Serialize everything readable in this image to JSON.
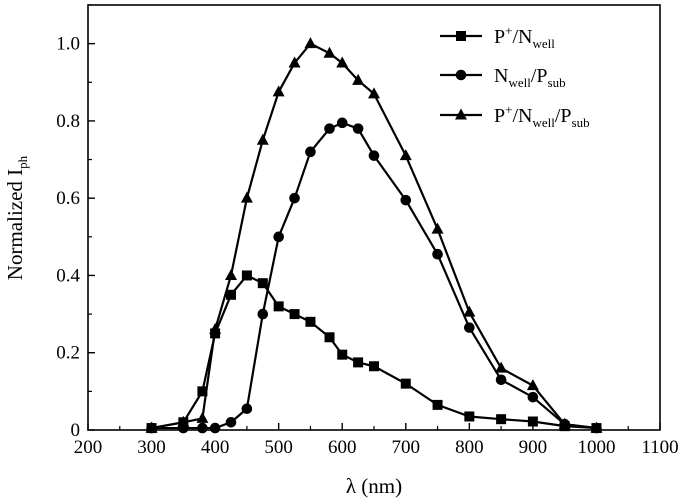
{
  "chart_data": {
    "type": "line",
    "xlabel": "λ (nm)",
    "ylabel": "Normalized I",
    "ylabel_subscript": "ph",
    "xlim": [
      200,
      1100
    ],
    "ylim": [
      0,
      1.1
    ],
    "x_ticks": [
      200,
      300,
      400,
      500,
      600,
      700,
      800,
      900,
      1000,
      1100
    ],
    "y_ticks": [
      "0",
      "0.2",
      "0.4",
      "0.6",
      "0.8",
      "1.0"
    ],
    "y_tick_values": [
      0,
      0.2,
      0.4,
      0.6,
      0.8,
      1.0
    ],
    "grid": false,
    "legend_position": "top-right",
    "series": [
      {
        "name": "P+/Nwell",
        "legend_parts": [
          [
            "P",
            ""
          ],
          [
            "+",
            "sup"
          ],
          [
            "/N",
            ""
          ],
          [
            "well",
            "sub"
          ]
        ],
        "marker": "square",
        "x": [
          300,
          350,
          380,
          400,
          425,
          450,
          475,
          500,
          525,
          550,
          580,
          600,
          625,
          650,
          700,
          750,
          800,
          850,
          900,
          950,
          1000
        ],
        "y": [
          0.005,
          0.02,
          0.1,
          0.25,
          0.35,
          0.4,
          0.38,
          0.32,
          0.3,
          0.28,
          0.24,
          0.195,
          0.175,
          0.165,
          0.12,
          0.065,
          0.035,
          0.028,
          0.022,
          0.01,
          0.005
        ]
      },
      {
        "name": "Nwell/Psub",
        "legend_parts": [
          [
            "N",
            ""
          ],
          [
            "well",
            "sub"
          ],
          [
            "/P",
            ""
          ],
          [
            "sub",
            "sub"
          ]
        ],
        "marker": "circle",
        "x": [
          300,
          350,
          380,
          400,
          425,
          450,
          475,
          500,
          525,
          550,
          580,
          600,
          625,
          650,
          700,
          750,
          800,
          850,
          900,
          950,
          1000
        ],
        "y": [
          0.005,
          0.005,
          0.005,
          0.005,
          0.02,
          0.055,
          0.3,
          0.5,
          0.6,
          0.72,
          0.78,
          0.795,
          0.78,
          0.71,
          0.595,
          0.455,
          0.265,
          0.13,
          0.085,
          0.015,
          0.005
        ]
      },
      {
        "name": "P+/Nwell/Psub",
        "legend_parts": [
          [
            "P",
            ""
          ],
          [
            "+",
            "sup"
          ],
          [
            "/N",
            ""
          ],
          [
            "well",
            "sub"
          ],
          [
            "/P",
            ""
          ],
          [
            "sub",
            "sub"
          ]
        ],
        "marker": "triangle",
        "x": [
          300,
          350,
          380,
          400,
          425,
          450,
          475,
          500,
          525,
          550,
          580,
          600,
          625,
          650,
          700,
          750,
          800,
          850,
          900,
          950,
          1000
        ],
        "y": [
          0.005,
          0.02,
          0.03,
          0.26,
          0.4,
          0.6,
          0.75,
          0.875,
          0.95,
          1.0,
          0.975,
          0.95,
          0.905,
          0.87,
          0.71,
          0.52,
          0.305,
          0.16,
          0.115,
          0.015,
          0.005
        ]
      }
    ]
  }
}
